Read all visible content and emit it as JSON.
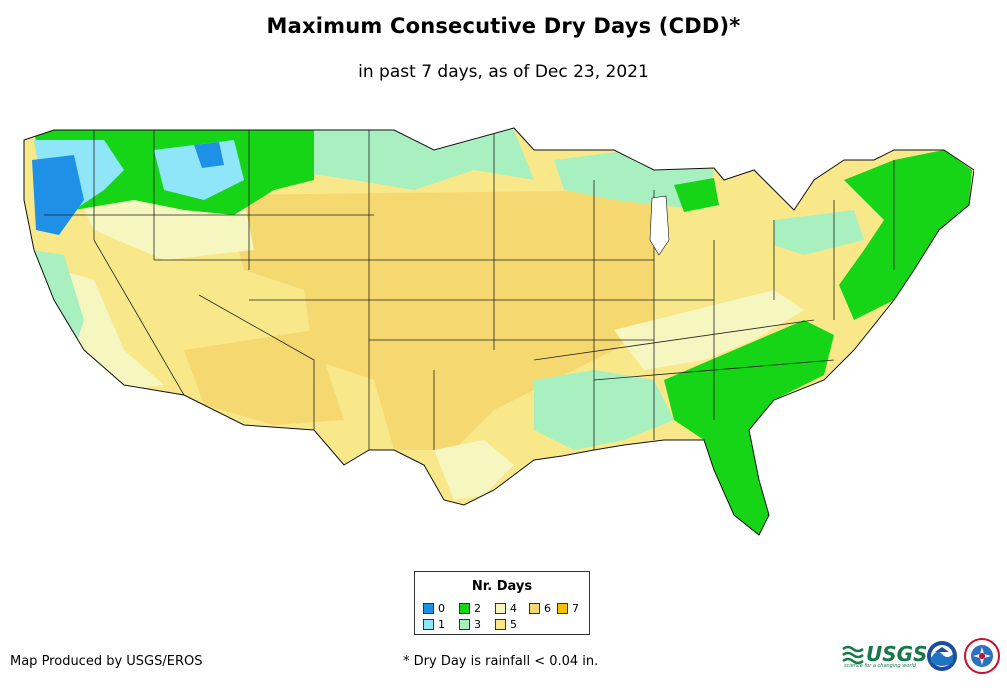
{
  "title": "Maximum Consecutive Dry Days (CDD)*",
  "subtitle": "in past 7 days, as of Dec 23, 2021",
  "legend": {
    "title": "Nr. Days",
    "items": [
      {
        "label": "0",
        "color": "#1e90e6"
      },
      {
        "label": "1",
        "color": "#8ee6f8"
      },
      {
        "label": "2",
        "color": "#16d416"
      },
      {
        "label": "3",
        "color": "#a8f0c0"
      },
      {
        "label": "4",
        "color": "#f6f6c0"
      },
      {
        "label": "5",
        "color": "#f8e88a"
      },
      {
        "label": "6",
        "color": "#f6d870"
      },
      {
        "label": "7",
        "color": "#f5c000"
      }
    ]
  },
  "footer": {
    "credit": "Map Produced by USGS/EROS",
    "footnote": "* Dry Day is rainfall < 0.04 in.",
    "usgs_label": "USGS",
    "usgs_tagline": "science for a changing world"
  },
  "icons": [
    "usgs-logo-icon",
    "noaa-logo-icon",
    "nws-logo-icon"
  ]
}
